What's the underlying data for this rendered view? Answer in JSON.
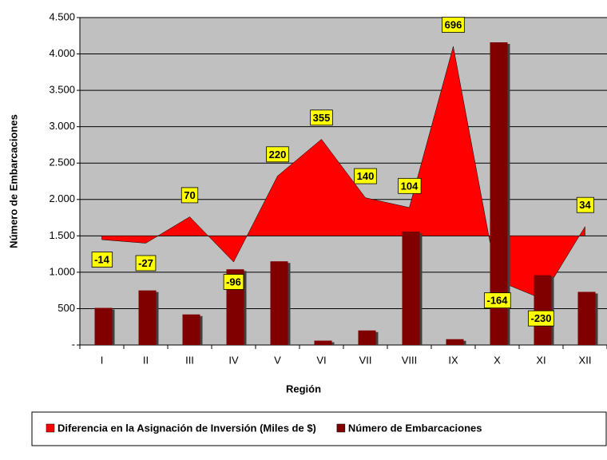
{
  "chart_data": {
    "type": "bar-area",
    "categories": [
      "I",
      "II",
      "III",
      "IV",
      "V",
      "VI",
      "VII",
      "VIII",
      "IX",
      "X",
      "XI",
      "XII"
    ],
    "series": [
      {
        "name": "Diferencia en la Asignación de Inversión (Miles de $)",
        "color": "#ff0000",
        "type": "area",
        "axis": "y2",
        "values": [
          -14,
          -27,
          70,
          -96,
          220,
          355,
          140,
          104,
          696,
          -164,
          -230,
          34
        ]
      },
      {
        "name": "Número de Embarcaciones",
        "color": "#800000",
        "type": "bar",
        "values": [
          510,
          750,
          420,
          1040,
          1150,
          60,
          200,
          1560,
          80,
          4160,
          960,
          730
        ]
      }
    ],
    "xlabel": "Región",
    "ylabel": "Número de Embarcaciones",
    "ylim": [
      0,
      4500
    ],
    "yticks": [
      {
        "value": 0,
        "label": "-"
      },
      500,
      {
        "value": 1000,
        "label": "1.000"
      },
      {
        "value": 1500,
        "label": "1.500"
      },
      {
        "value": 2000,
        "label": "2.000"
      },
      {
        "value": 2500,
        "label": "2.500"
      },
      {
        "value": 3000,
        "label": "3.000"
      },
      {
        "value": 3500,
        "label": "3.500"
      },
      {
        "value": 4000,
        "label": "4.000"
      },
      {
        "value": 4500,
        "label": "4.500"
      }
    ],
    "y2lim": [
      -401,
      802
    ],
    "grid": true,
    "legend": "bottom"
  }
}
